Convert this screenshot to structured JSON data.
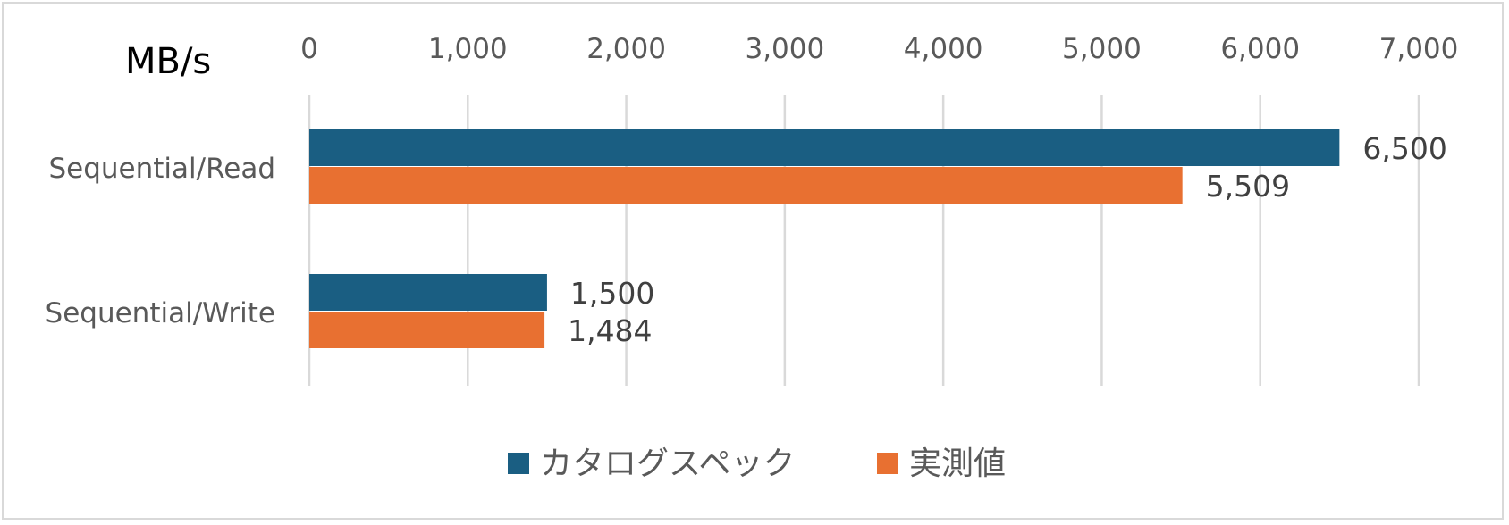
{
  "chart_data": {
    "type": "bar",
    "orientation": "horizontal",
    "unit_label": "MB/s",
    "categories": [
      "Sequential/Read",
      "Sequential/Write"
    ],
    "series": [
      {
        "name": "カタログスペック",
        "values": [
          6500,
          1500
        ],
        "labels": [
          "6,500",
          "1,500"
        ],
        "color": "#1a5e82"
      },
      {
        "name": "実測値",
        "values": [
          5509,
          1484
        ],
        "labels": [
          "5,509",
          "1,484"
        ],
        "color": "#e87031"
      }
    ],
    "xlim": [
      0,
      7000
    ],
    "ticks": [
      0,
      1000,
      2000,
      3000,
      4000,
      5000,
      6000,
      7000
    ],
    "tick_labels": [
      "0",
      "1,000",
      "2,000",
      "3,000",
      "4,000",
      "5,000",
      "6,000",
      "7,000"
    ],
    "axis_position": "top",
    "grid": true,
    "legend_position": "bottom"
  }
}
